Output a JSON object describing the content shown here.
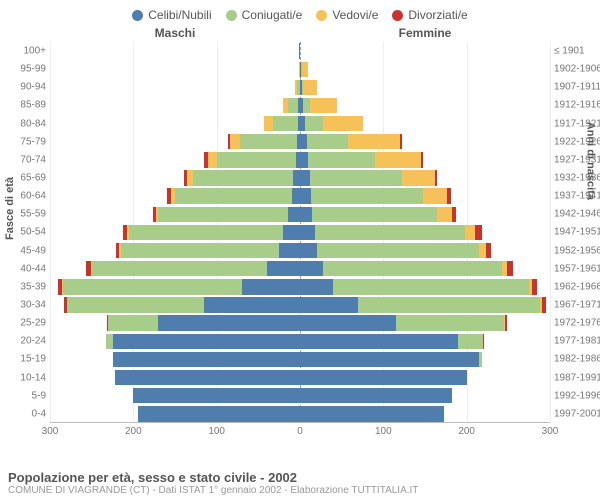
{
  "legend": {
    "items": [
      {
        "label": "Celibi/Nubili",
        "color": "#4f7dad"
      },
      {
        "label": "Coniugati/e",
        "color": "#a8cd8b"
      },
      {
        "label": "Vedovi/e",
        "color": "#f7c15a"
      },
      {
        "label": "Divorziati/e",
        "color": "#c73430"
      }
    ]
  },
  "headers": {
    "male": "Maschi",
    "female": "Femmine"
  },
  "axis_titles": {
    "left": "Fasce di età",
    "right": "Anni di nascita"
  },
  "title": "Popolazione per età, sesso e stato civile - 2002",
  "subtitle": "COMUNE DI VIAGRANDE (CT) - Dati ISTAT 1° gennaio 2002 - Elaborazione TUTTITALIA.IT",
  "colors": {
    "celibi": "#4f7dad",
    "coniugati": "#a8cd8b",
    "vedovi": "#f7c15a",
    "divorziati": "#c73430",
    "bg": "#ffffff"
  },
  "x_max": 300,
  "x_ticks": [
    300,
    200,
    100,
    0,
    100,
    200,
    300
  ],
  "age_groups": [
    {
      "age": "100+",
      "birth": "≤ 1901",
      "m": {
        "c": 1,
        "m": 0,
        "w": 0,
        "d": 0
      },
      "f": {
        "c": 0,
        "m": 0,
        "w": 0,
        "d": 0
      }
    },
    {
      "age": "95-99",
      "birth": "1902-1906",
      "m": {
        "c": 0,
        "m": 0,
        "w": 1,
        "d": 0
      },
      "f": {
        "c": 1,
        "m": 1,
        "w": 8,
        "d": 0
      }
    },
    {
      "age": "90-94",
      "birth": "1907-1911",
      "m": {
        "c": 0,
        "m": 4,
        "w": 2,
        "d": 0
      },
      "f": {
        "c": 2,
        "m": 2,
        "w": 16,
        "d": 0
      }
    },
    {
      "age": "85-89",
      "birth": "1912-1916",
      "m": {
        "c": 2,
        "m": 12,
        "w": 6,
        "d": 0
      },
      "f": {
        "c": 4,
        "m": 8,
        "w": 32,
        "d": 0
      }
    },
    {
      "age": "80-84",
      "birth": "1917-1921",
      "m": {
        "c": 3,
        "m": 30,
        "w": 10,
        "d": 0
      },
      "f": {
        "c": 6,
        "m": 22,
        "w": 48,
        "d": 0
      }
    },
    {
      "age": "75-79",
      "birth": "1922-1926",
      "m": {
        "c": 4,
        "m": 68,
        "w": 12,
        "d": 2
      },
      "f": {
        "c": 8,
        "m": 50,
        "w": 62,
        "d": 2
      }
    },
    {
      "age": "70-74",
      "birth": "1927-1931",
      "m": {
        "c": 5,
        "m": 95,
        "w": 10,
        "d": 5
      },
      "f": {
        "c": 10,
        "m": 80,
        "w": 55,
        "d": 3
      }
    },
    {
      "age": "65-69",
      "birth": "1932-1936",
      "m": {
        "c": 8,
        "m": 120,
        "w": 8,
        "d": 3
      },
      "f": {
        "c": 12,
        "m": 110,
        "w": 40,
        "d": 3
      }
    },
    {
      "age": "60-64",
      "birth": "1937-1941",
      "m": {
        "c": 10,
        "m": 140,
        "w": 5,
        "d": 5
      },
      "f": {
        "c": 13,
        "m": 135,
        "w": 28,
        "d": 5
      }
    },
    {
      "age": "55-59",
      "birth": "1942-1946",
      "m": {
        "c": 15,
        "m": 155,
        "w": 3,
        "d": 4
      },
      "f": {
        "c": 14,
        "m": 150,
        "w": 18,
        "d": 5
      }
    },
    {
      "age": "50-54",
      "birth": "1947-1951",
      "m": {
        "c": 20,
        "m": 185,
        "w": 3,
        "d": 5
      },
      "f": {
        "c": 18,
        "m": 180,
        "w": 12,
        "d": 8
      }
    },
    {
      "age": "45-49",
      "birth": "1952-1956",
      "m": {
        "c": 25,
        "m": 190,
        "w": 2,
        "d": 4
      },
      "f": {
        "c": 20,
        "m": 195,
        "w": 8,
        "d": 6
      }
    },
    {
      "age": "40-44",
      "birth": "1957-1961",
      "m": {
        "c": 40,
        "m": 210,
        "w": 1,
        "d": 6
      },
      "f": {
        "c": 28,
        "m": 215,
        "w": 5,
        "d": 8
      }
    },
    {
      "age": "35-39",
      "birth": "1962-1966",
      "m": {
        "c": 70,
        "m": 215,
        "w": 1,
        "d": 5
      },
      "f": {
        "c": 40,
        "m": 235,
        "w": 3,
        "d": 7
      }
    },
    {
      "age": "30-34",
      "birth": "1967-1971",
      "m": {
        "c": 115,
        "m": 165,
        "w": 0,
        "d": 3
      },
      "f": {
        "c": 70,
        "m": 218,
        "w": 2,
        "d": 5
      }
    },
    {
      "age": "25-29",
      "birth": "1972-1976",
      "m": {
        "c": 170,
        "m": 60,
        "w": 0,
        "d": 2
      },
      "f": {
        "c": 115,
        "m": 130,
        "w": 1,
        "d": 3
      }
    },
    {
      "age": "20-24",
      "birth": "1977-1981",
      "m": {
        "c": 225,
        "m": 8,
        "w": 0,
        "d": 0
      },
      "f": {
        "c": 190,
        "m": 30,
        "w": 0,
        "d": 1
      }
    },
    {
      "age": "15-19",
      "birth": "1982-1986",
      "m": {
        "c": 225,
        "m": 0,
        "w": 0,
        "d": 0
      },
      "f": {
        "c": 215,
        "m": 4,
        "w": 0,
        "d": 0
      }
    },
    {
      "age": "10-14",
      "birth": "1987-1991",
      "m": {
        "c": 222,
        "m": 0,
        "w": 0,
        "d": 0
      },
      "f": {
        "c": 200,
        "m": 0,
        "w": 0,
        "d": 0
      }
    },
    {
      "age": "5-9",
      "birth": "1992-1996",
      "m": {
        "c": 200,
        "m": 0,
        "w": 0,
        "d": 0
      },
      "f": {
        "c": 182,
        "m": 0,
        "w": 0,
        "d": 0
      }
    },
    {
      "age": "0-4",
      "birth": "1997-2001",
      "m": {
        "c": 195,
        "m": 0,
        "w": 0,
        "d": 0
      },
      "f": {
        "c": 173,
        "m": 0,
        "w": 0,
        "d": 0
      }
    }
  ]
}
